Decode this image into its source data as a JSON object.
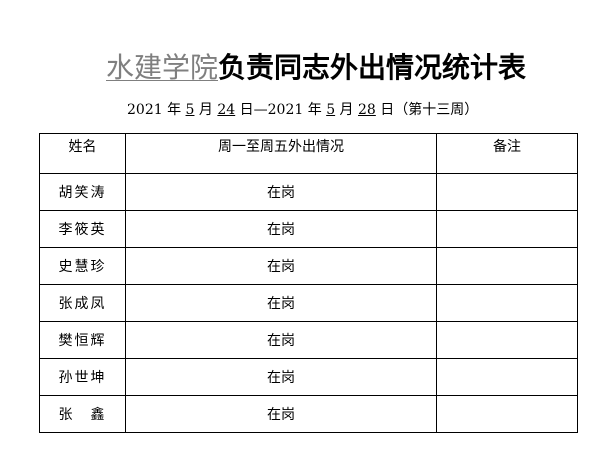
{
  "title": {
    "org": "水建学院",
    "rest": "负责同志外出情况统计表"
  },
  "subtitle": {
    "y1": "2021",
    "t1": " 年 ",
    "m1": "5",
    "t2": " 月 ",
    "d1": "24",
    "t3": " 日—2021 年 ",
    "m2": "5",
    "t4": " 月 ",
    "d2": "28",
    "t5": " 日（第十三周）"
  },
  "table": {
    "headers": [
      "姓名",
      "周一至周五外出情况",
      "备注"
    ],
    "rows": [
      {
        "name": "胡笑涛",
        "status": "在岗",
        "note": ""
      },
      {
        "name": "李筱英",
        "status": "在岗",
        "note": ""
      },
      {
        "name": "史慧珍",
        "status": "在岗",
        "note": ""
      },
      {
        "name": "张成凤",
        "status": "在岗",
        "note": ""
      },
      {
        "name": "樊恒辉",
        "status": "在岗",
        "note": ""
      },
      {
        "name": "孙世坤",
        "status": "在岗",
        "note": ""
      },
      {
        "name": "张　鑫",
        "status": "在岗",
        "note": ""
      }
    ]
  }
}
